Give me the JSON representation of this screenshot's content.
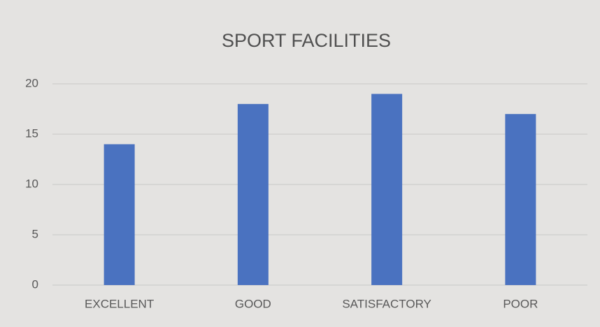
{
  "chart_data": {
    "type": "bar",
    "title": "SPORT FACILITIES",
    "categories": [
      "EXCELLENT",
      "GOOD",
      "SATISFACTORY",
      "POOR"
    ],
    "values": [
      14,
      18,
      19,
      17
    ],
    "color": "#4a72c0",
    "ylim": [
      0,
      20
    ],
    "yticks": [
      0,
      5,
      10,
      15,
      20
    ],
    "grid": true
  }
}
